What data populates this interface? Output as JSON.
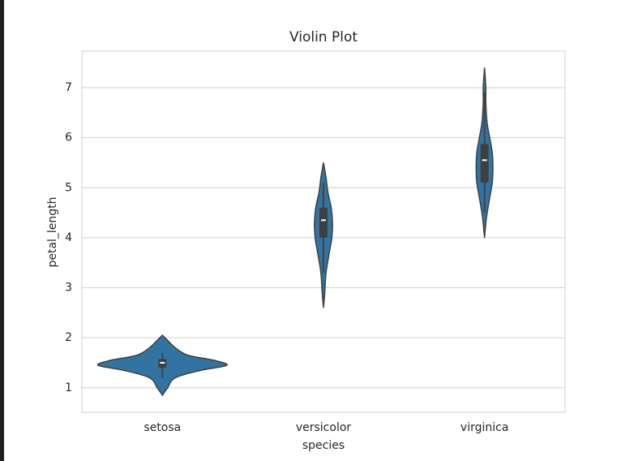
{
  "chart_data": {
    "type": "violin",
    "title": "Violin Plot",
    "x_label": "species",
    "y_label": "petal_length",
    "categories": [
      "setosa",
      "versicolor",
      "virginica"
    ],
    "color": "#3274a1",
    "edge_color": "#3f3f3f",
    "grid": true,
    "ylim": [
      0.51,
      7.73
    ],
    "yticks": [
      1,
      2,
      3,
      4,
      5,
      6,
      7
    ],
    "violins": [
      {
        "whislo": 1.2,
        "q1": 1.4,
        "median": 1.5,
        "q3": 1.575,
        "whishi": 1.7,
        "density": {
          "y": [
            0.85,
            1.0,
            1.2,
            1.35,
            1.45,
            1.55,
            1.65,
            1.8,
            1.95,
            2.05
          ],
          "width": [
            0,
            0.08,
            0.2,
            0.6,
            1.0,
            0.8,
            0.4,
            0.2,
            0.08,
            0
          ]
        }
      },
      {
        "whislo": 3.3,
        "q1": 4.0,
        "median": 4.35,
        "q3": 4.6,
        "whishi": 5.1,
        "density": {
          "y": [
            2.6,
            2.9,
            3.3,
            3.7,
            4.0,
            4.3,
            4.6,
            4.9,
            5.2,
            5.5
          ],
          "width": [
            0,
            0.02,
            0.04,
            0.09,
            0.13,
            0.14,
            0.12,
            0.07,
            0.04,
            0
          ]
        }
      },
      {
        "whislo": 4.5,
        "q1": 5.1,
        "median": 5.55,
        "q3": 5.875,
        "whishi": 6.9,
        "density": {
          "y": [
            4.0,
            4.4,
            4.8,
            5.1,
            5.4,
            5.7,
            6.0,
            6.3,
            6.7,
            7.0,
            7.4
          ],
          "width": [
            0,
            0.03,
            0.08,
            0.12,
            0.13,
            0.12,
            0.08,
            0.04,
            0.02,
            0.02,
            0
          ]
        }
      }
    ]
  }
}
